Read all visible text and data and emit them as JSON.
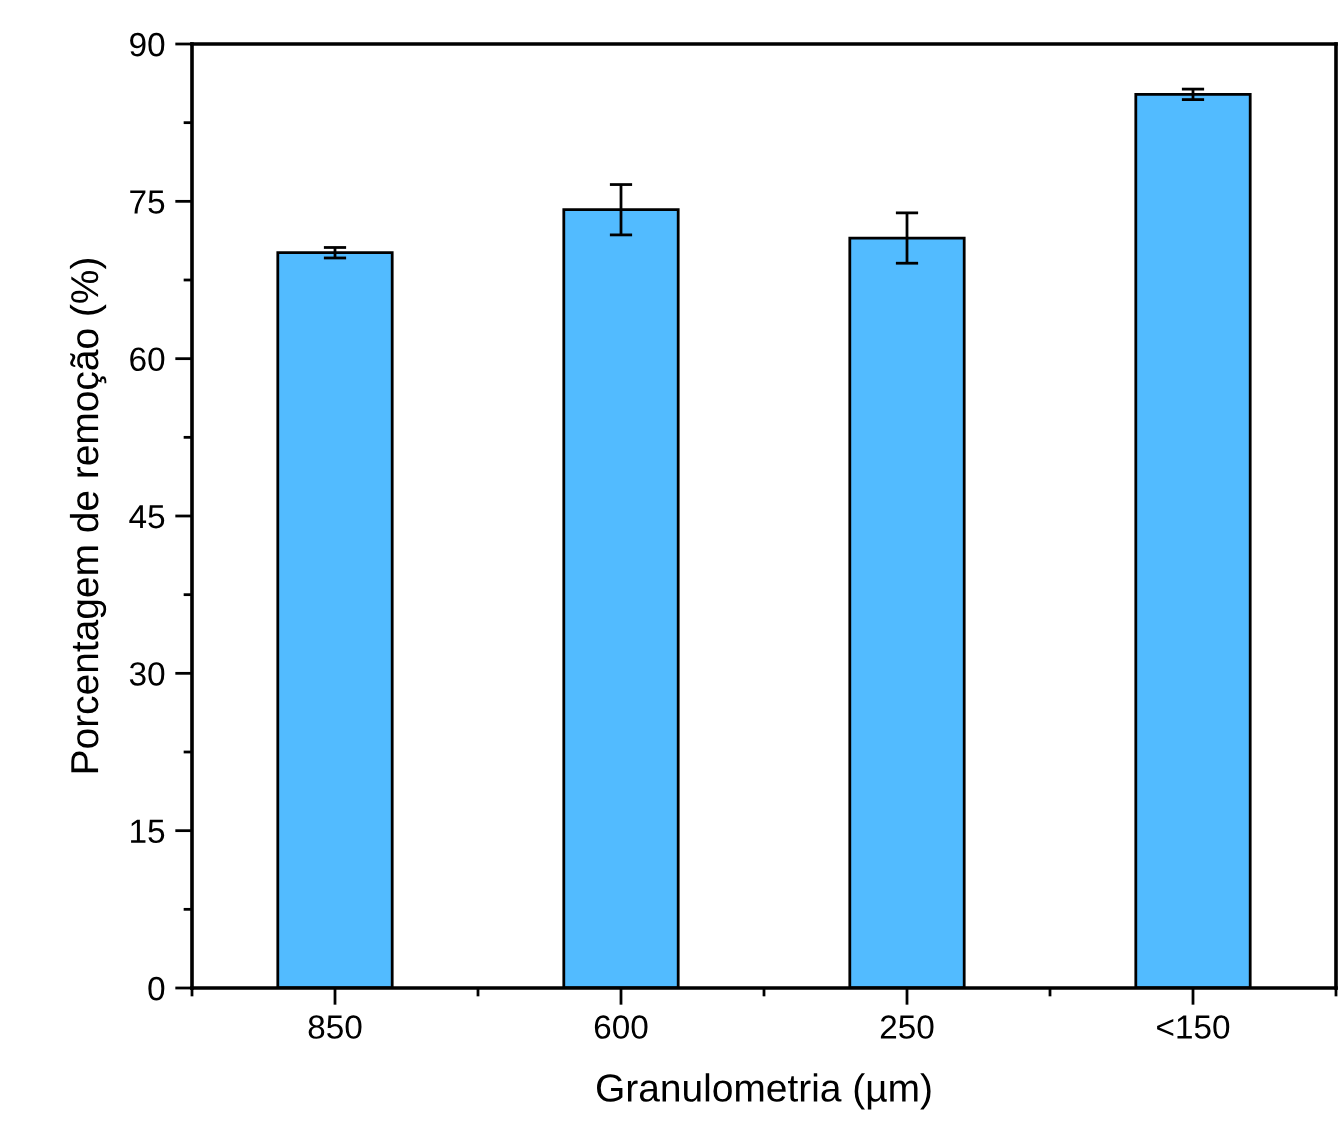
{
  "chart_data": {
    "type": "bar",
    "xlabel": "Granulometria (µm)",
    "ylabel": "Porcentagem de remoção (%)",
    "categories": [
      "850",
      "600",
      "250",
      "<150"
    ],
    "values": [
      70.1,
      74.2,
      71.5,
      85.2
    ],
    "errors": [
      0.5,
      2.4,
      2.4,
      0.5
    ],
    "color": "#52bbff",
    "ylim": [
      0,
      90
    ],
    "yticks": [
      0,
      15,
      30,
      45,
      60,
      75,
      90
    ],
    "grid": false
  }
}
